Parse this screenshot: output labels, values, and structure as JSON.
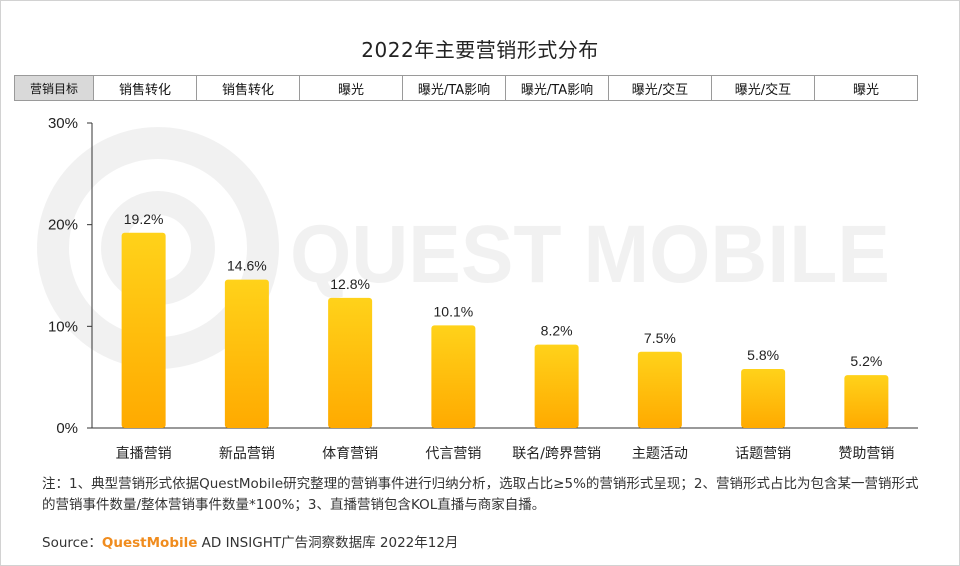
{
  "title": "2022年主要营销形式分布",
  "goal_row": {
    "header": "营销目标",
    "cells": [
      "销售转化",
      "销售转化",
      "曝光",
      "曝光/TA影响",
      "曝光/TA影响",
      "曝光/交互",
      "曝光/交互",
      "曝光"
    ]
  },
  "watermark": "QUEST MOBILE",
  "note": "注：1、典型营销形式依据QuestMobile研究整理的营销事件进行归纳分析，选取占比≥5%的营销形式呈现；2、营销形式占比为包含某一营销形式的营销事件数量/整体营销事件数量*100%；3、直播营销包含KOL直播与商家自播。",
  "source": {
    "label": "Source：",
    "brand": "QuestMobile",
    "text": " AD INSIGHT广告洞察数据库 2022年12月"
  },
  "colors": {
    "bar_top": "#ffd21a",
    "bar_bottom": "#ffaa00",
    "brand": "#f08c1e"
  },
  "chart_data": {
    "type": "bar",
    "title": "2022年主要营销形式分布",
    "categories": [
      "直播营销",
      "新品营销",
      "体育营销",
      "代言营销",
      "联名/跨界营销",
      "主题活动",
      "话题营销",
      "赞助营销"
    ],
    "values": [
      19.2,
      14.6,
      12.8,
      10.1,
      8.2,
      7.5,
      5.8,
      5.2
    ],
    "data_labels": [
      "19.2%",
      "14.6%",
      "12.8%",
      "10.1%",
      "8.2%",
      "7.5%",
      "5.8%",
      "5.2%"
    ],
    "y_ticks": [
      0,
      10,
      20,
      30
    ],
    "y_tick_labels": [
      "0%",
      "10%",
      "20%",
      "30%"
    ],
    "ylim": [
      0,
      30
    ],
    "grid": false,
    "xlabel": "",
    "ylabel": ""
  }
}
